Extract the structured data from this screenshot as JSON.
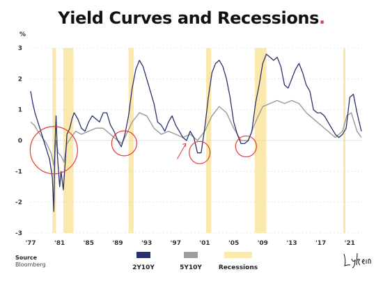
{
  "title": "Yield Curves and Recessions",
  "title_dot": ".",
  "source": {
    "label": "Source",
    "value": "Bloomberg"
  },
  "logo_text": "Lykeion",
  "colors": {
    "series_2y10y": "#26306b",
    "series_5y10y": "#9e9e9e",
    "recession": "#fbe8ad",
    "accent": "#e4433a",
    "circle": "#e03a35"
  },
  "chart_data": {
    "type": "line",
    "ylabel": "%",
    "xlim": [
      1977,
      2022.7
    ],
    "ylim": [
      -3,
      3
    ],
    "y_ticks": [
      -3,
      -2,
      -1,
      0,
      1,
      2,
      3
    ],
    "x_ticks": [
      {
        "value": 1977,
        "label": "'77"
      },
      {
        "value": 1981,
        "label": "'81"
      },
      {
        "value": 1985,
        "label": "'85"
      },
      {
        "value": 1989,
        "label": "'89"
      },
      {
        "value": 1993,
        "label": "'93"
      },
      {
        "value": 1997,
        "label": "'97"
      },
      {
        "value": 2001,
        "label": "'01"
      },
      {
        "value": 2005,
        "label": "'05"
      },
      {
        "value": 2009,
        "label": "'09"
      },
      {
        "value": 2013,
        "label": "'13"
      },
      {
        "value": 2017,
        "label": "'17"
      },
      {
        "value": 2021,
        "label": "'21"
      }
    ],
    "recessions": [
      [
        1980.0,
        1980.5
      ],
      [
        1981.5,
        1982.9
      ],
      [
        1990.5,
        1991.2
      ],
      [
        2001.2,
        2001.9
      ],
      [
        2007.9,
        2009.5
      ],
      [
        2020.1,
        2020.4
      ]
    ],
    "series": [
      {
        "name": "2Y10Y",
        "x": [
          1977.0,
          1977.3,
          1977.6,
          1978.0,
          1978.4,
          1978.8,
          1979.2,
          1979.6,
          1980.0,
          1980.2,
          1980.35,
          1980.5,
          1980.7,
          1981.0,
          1981.2,
          1981.5,
          1981.8,
          1982.0,
          1982.4,
          1982.7,
          1983.0,
          1983.5,
          1984.0,
          1984.5,
          1985.0,
          1985.5,
          1986.0,
          1986.5,
          1987.0,
          1987.5,
          1988.0,
          1988.5,
          1989.0,
          1989.5,
          1990.0,
          1990.5,
          1991.0,
          1991.5,
          1992.0,
          1992.5,
          1993.0,
          1993.5,
          1994.0,
          1994.5,
          1995.0,
          1995.5,
          1996.0,
          1996.5,
          1997.0,
          1997.5,
          1998.0,
          1998.5,
          1999.0,
          1999.5,
          2000.0,
          2000.5,
          2001.0,
          2001.5,
          2002.0,
          2002.5,
          2003.0,
          2003.5,
          2004.0,
          2004.5,
          2005.0,
          2005.5,
          2006.0,
          2006.5,
          2007.0,
          2007.5,
          2008.0,
          2008.5,
          2009.0,
          2009.5,
          2010.0,
          2010.5,
          2011.0,
          2011.5,
          2012.0,
          2012.5,
          2013.0,
          2013.5,
          2014.0,
          2014.5,
          2015.0,
          2015.5,
          2016.0,
          2016.5,
          2017.0,
          2017.5,
          2018.0,
          2018.5,
          2019.0,
          2019.5,
          2020.0,
          2020.5,
          2021.0,
          2021.5,
          2022.0,
          2022.3,
          2022.6
        ],
        "values": [
          1.6,
          1.2,
          0.9,
          0.6,
          0.3,
          0.0,
          -0.3,
          -0.6,
          -1.2,
          -2.3,
          -0.2,
          0.8,
          -0.5,
          -1.5,
          -1.0,
          -1.6,
          -0.6,
          0.2,
          0.4,
          0.7,
          0.9,
          0.7,
          0.4,
          0.3,
          0.6,
          0.8,
          0.7,
          0.6,
          0.9,
          0.9,
          0.5,
          0.3,
          0.0,
          -0.2,
          0.2,
          0.8,
          1.7,
          2.3,
          2.6,
          2.4,
          2.0,
          1.6,
          1.2,
          0.6,
          0.5,
          0.3,
          0.6,
          0.8,
          0.5,
          0.3,
          0.1,
          0.0,
          0.3,
          0.1,
          -0.4,
          -0.4,
          0.4,
          1.4,
          2.2,
          2.5,
          2.6,
          2.4,
          2.0,
          1.4,
          0.6,
          0.2,
          -0.1,
          -0.1,
          0.0,
          0.3,
          1.2,
          1.8,
          2.5,
          2.8,
          2.7,
          2.6,
          2.7,
          2.4,
          1.8,
          1.7,
          2.0,
          2.3,
          2.5,
          2.2,
          1.8,
          1.6,
          1.0,
          0.9,
          0.9,
          0.8,
          0.6,
          0.4,
          0.2,
          0.1,
          0.2,
          0.4,
          1.4,
          1.5,
          0.9,
          0.6,
          0.3
        ]
      },
      {
        "name": "5Y10Y",
        "x": [
          1977.0,
          1977.5,
          1978.0,
          1978.6,
          1979.2,
          1979.8,
          1980.2,
          1980.5,
          1980.8,
          1981.2,
          1981.6,
          1982.0,
          1982.6,
          1983.2,
          1984.0,
          1985.0,
          1986.0,
          1987.0,
          1988.0,
          1989.0,
          1989.6,
          1990.2,
          1991.0,
          1992.0,
          1993.0,
          1994.0,
          1995.0,
          1996.0,
          1997.0,
          1998.0,
          1999.0,
          2000.0,
          2001.0,
          2002.0,
          2003.0,
          2004.0,
          2005.0,
          2006.0,
          2007.0,
          2008.0,
          2009.0,
          2010.0,
          2011.0,
          2012.0,
          2013.0,
          2014.0,
          2015.0,
          2016.0,
          2017.0,
          2018.0,
          2019.0,
          2020.0,
          2020.6,
          2021.2,
          2022.0,
          2022.6
        ],
        "values": [
          0.6,
          0.5,
          0.3,
          0.1,
          -0.1,
          -0.4,
          -0.8,
          0.0,
          -0.4,
          -0.5,
          -0.7,
          -0.1,
          0.1,
          0.3,
          0.2,
          0.3,
          0.4,
          0.4,
          0.2,
          0.0,
          -0.1,
          0.2,
          0.6,
          0.9,
          0.8,
          0.4,
          0.2,
          0.3,
          0.2,
          0.1,
          0.2,
          0.0,
          0.3,
          0.8,
          1.1,
          0.9,
          0.4,
          0.0,
          0.0,
          0.6,
          1.1,
          1.2,
          1.3,
          1.2,
          1.3,
          1.2,
          0.9,
          0.7,
          0.5,
          0.3,
          0.1,
          0.3,
          0.8,
          0.9,
          0.3,
          0.1
        ]
      }
    ],
    "legend": [
      {
        "key": "2Y10Y",
        "label": "2Y10Y",
        "color": "#26306b"
      },
      {
        "key": "5Y10Y",
        "label": "5Y10Y",
        "color": "#9e9e9e"
      },
      {
        "key": "recessions",
        "label": "Recessions",
        "color": "#fbe8ad"
      }
    ],
    "annotation_circles": [
      1980.2,
      1989.9,
      2000.3,
      2006.7
    ]
  }
}
